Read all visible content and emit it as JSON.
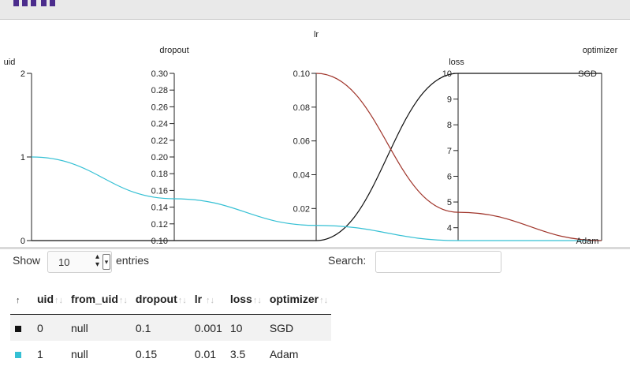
{
  "colors": {
    "series_uid0": "#111111",
    "series_uid1": "#35c0d4",
    "link_lr_loss": "#a0352b",
    "axis": "#222222"
  },
  "chart_data": {
    "type": "parallel_coordinates",
    "axes": [
      {
        "name": "uid",
        "label": "uid",
        "min": 0,
        "max": 2,
        "ticks": [
          "0",
          "1",
          "2"
        ]
      },
      {
        "name": "dropout",
        "label": "dropout",
        "min": 0.1,
        "max": 0.3,
        "ticks": [
          "0.10",
          "0.12",
          "0.14",
          "0.16",
          "0.18",
          "0.20",
          "0.22",
          "0.24",
          "0.26",
          "0.28",
          "0.30"
        ]
      },
      {
        "name": "lr",
        "label": "lr",
        "min": 0.001,
        "max": 0.1,
        "ticks": [
          "0.02",
          "0.04",
          "0.06",
          "0.08",
          "0.10"
        ]
      },
      {
        "name": "loss",
        "label": "loss",
        "min": 3.5,
        "max": 10,
        "ticks": [
          "4",
          "5",
          "6",
          "7",
          "8",
          "9",
          "10"
        ]
      },
      {
        "name": "optimizer",
        "label": "optimizer",
        "categorical": true,
        "ticks": [
          "SGD",
          "Adam"
        ]
      }
    ],
    "series": [
      {
        "uid": 0,
        "values": {
          "uid": 0,
          "dropout": 0.1,
          "lr": 0.001,
          "loss": 10,
          "optimizer": "SGD"
        }
      },
      {
        "uid": 1,
        "values": {
          "uid": 1,
          "dropout": 0.15,
          "lr": 0.01,
          "loss": 3.5,
          "optimizer": "Adam"
        }
      }
    ],
    "extra_links": [
      {
        "from_axis": "lr",
        "from_value": 0.1,
        "to_axis": "loss",
        "to_value": 4.6
      },
      {
        "from_axis": "loss",
        "from_value": 4.6,
        "to_axis": "optimizer",
        "to_value": "Adam"
      }
    ]
  },
  "controls": {
    "show_label": "Show",
    "length_value": "10",
    "entries_label": "entries",
    "search_label": "Search:",
    "search_value": ""
  },
  "table": {
    "sort_glyph": "↑↓",
    "first_col_glyph": "↑",
    "columns": [
      "uid",
      "from_uid",
      "dropout",
      "lr",
      "loss",
      "optimizer"
    ],
    "rows": [
      {
        "uid": "0",
        "from_uid": "null",
        "dropout": "0.1",
        "lr": "0.001",
        "loss": "10",
        "optimizer": "SGD",
        "marker_color": "#111111"
      },
      {
        "uid": "1",
        "from_uid": "null",
        "dropout": "0.15",
        "lr": "0.01",
        "loss": "3.5",
        "optimizer": "Adam",
        "marker_color": "#35c0d4"
      }
    ]
  }
}
